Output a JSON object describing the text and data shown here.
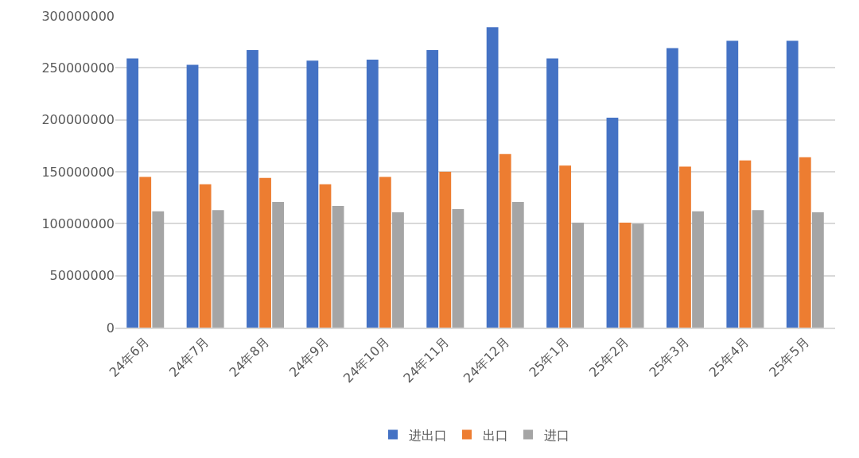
{
  "chart_data": {
    "type": "bar",
    "categories": [
      "24年6月",
      "24年7月",
      "24年8月",
      "24年9月",
      "24年10月",
      "24年11月",
      "24年12月",
      "25年1月",
      "25年2月",
      "25年3月",
      "25年4月",
      "25年5月"
    ],
    "series": [
      {
        "name": "进出口",
        "color": "#4472c4",
        "values": [
          259000000,
          253000000,
          267000000,
          257000000,
          258000000,
          267000000,
          289000000,
          259000000,
          202000000,
          269000000,
          276000000,
          276000000
        ]
      },
      {
        "name": "出口",
        "color": "#ed7d31",
        "values": [
          145000000,
          138000000,
          144000000,
          138000000,
          145000000,
          150000000,
          167000000,
          156000000,
          101000000,
          155000000,
          161000000,
          164000000
        ]
      },
      {
        "name": "进口",
        "color": "#a5a5a5",
        "values": [
          112000000,
          113000000,
          121000000,
          117000000,
          111000000,
          114000000,
          121000000,
          101000000,
          100000000,
          112000000,
          113000000,
          111000000
        ]
      }
    ],
    "ylim": [
      0,
      300000000
    ],
    "yticks": [
      {
        "value": 0,
        "label": "0"
      },
      {
        "value": 50000000,
        "label": "50000000"
      },
      {
        "value": 100000000,
        "label": "100000000"
      },
      {
        "value": 150000000,
        "label": "150000000"
      },
      {
        "value": 200000000,
        "label": "200000000"
      },
      {
        "value": 250000000,
        "label": "250000000"
      },
      {
        "value": 300000000,
        "label": "300000000"
      }
    ],
    "grid": "y",
    "legend": "bottom"
  }
}
